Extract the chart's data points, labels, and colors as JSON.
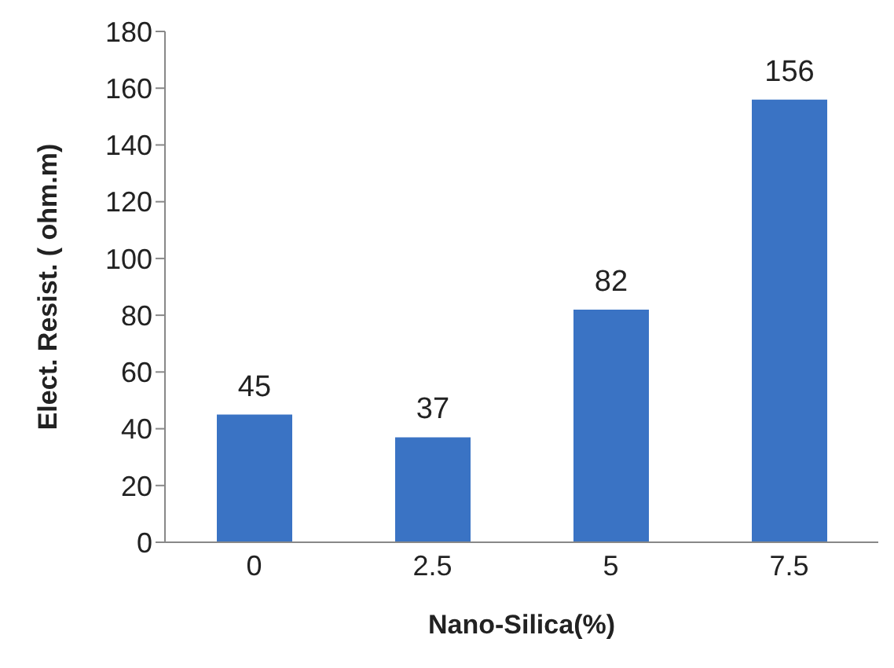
{
  "chart_data": {
    "type": "bar",
    "xlabel": "Nano-Silica(%)",
    "ylabel": "Elect. Resist. ( ohm.m)",
    "categories": [
      "0",
      "2.5",
      "5",
      "7.5"
    ],
    "values": [
      45,
      37,
      82,
      156
    ],
    "color": "#3a73c4",
    "ylim": [
      0,
      180
    ],
    "yticks": [
      0,
      20,
      40,
      60,
      80,
      100,
      120,
      140,
      160,
      180
    ],
    "grid": false,
    "data_labels": true
  }
}
